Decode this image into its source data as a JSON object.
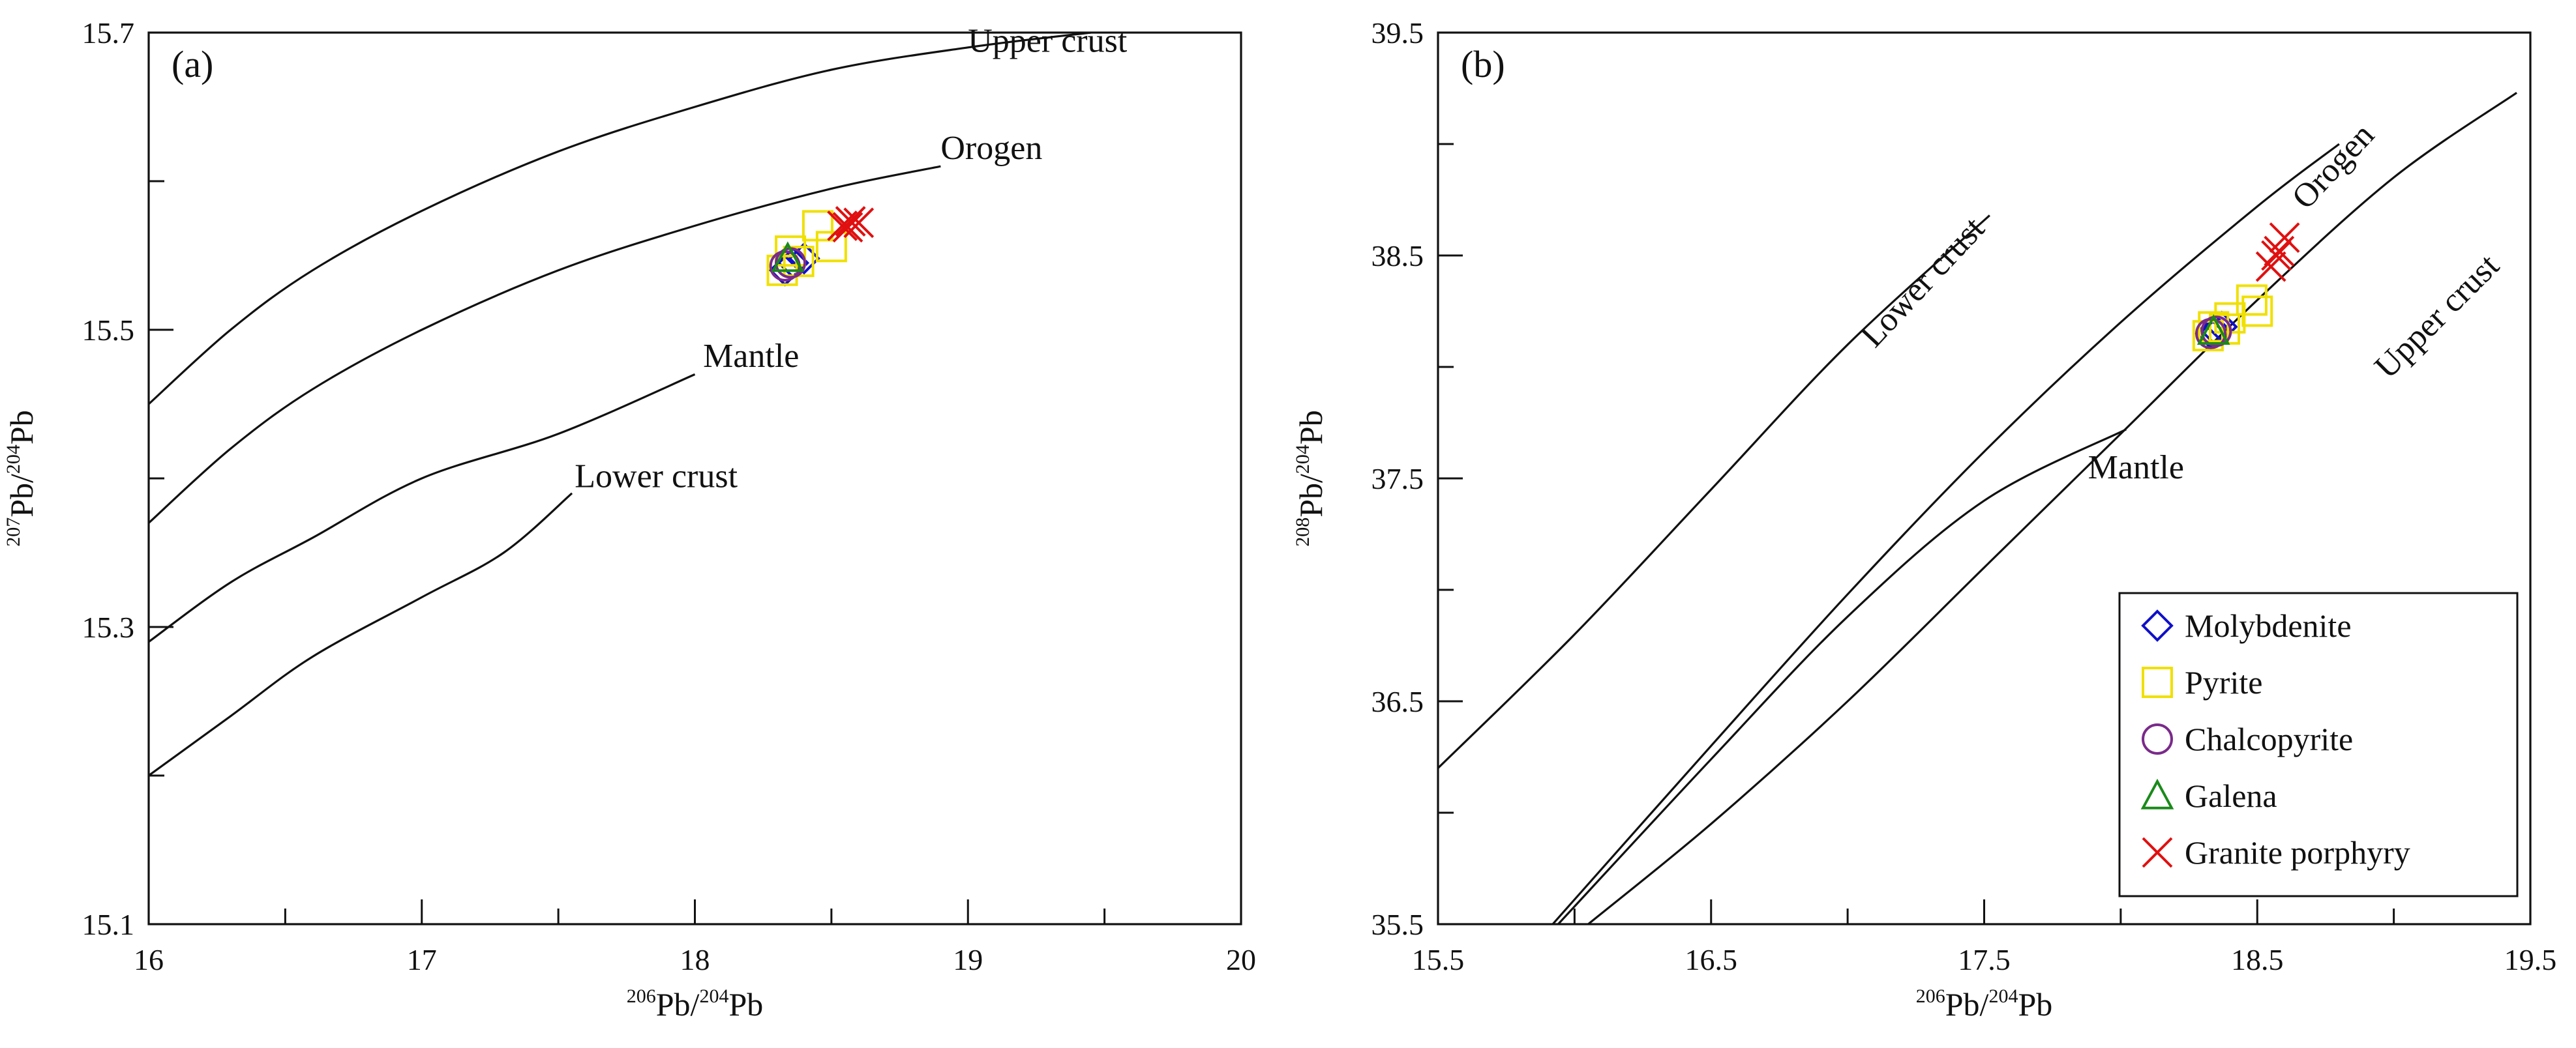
{
  "chart_data": [
    {
      "panel": "(a)",
      "type": "line",
      "xlabel": {
        "sup_a": "206",
        "base_a": "Pb/",
        "sup_b": "204",
        "base_b": "Pb"
      },
      "ylabel": {
        "sup_a": "207",
        "base_a": "Pb/",
        "sup_b": "204",
        "base_b": "Pb"
      },
      "xlim": [
        16,
        20
      ],
      "ylim": [
        15.1,
        15.7
      ],
      "x_ticks": [
        16,
        17,
        18,
        19,
        20
      ],
      "y_ticks": [
        15.1,
        15.3,
        15.5,
        15.7
      ],
      "x_minor_step": 0.5,
      "y_minor_step": 0.1,
      "curves": [
        {
          "name": "Upper crust",
          "points": [
            [
              16.0,
              15.45
            ],
            [
              16.3,
              15.5
            ],
            [
              16.6,
              15.54
            ],
            [
              17.0,
              15.58
            ],
            [
              17.5,
              15.62
            ],
            [
              18.0,
              15.65
            ],
            [
              18.5,
              15.675
            ],
            [
              19.0,
              15.69
            ],
            [
              19.45,
              15.7
            ]
          ]
        },
        {
          "name": "Orogen",
          "points": [
            [
              16.0,
              15.37
            ],
            [
              16.3,
              15.42
            ],
            [
              16.6,
              15.46
            ],
            [
              17.0,
              15.5
            ],
            [
              17.5,
              15.54
            ],
            [
              18.0,
              15.57
            ],
            [
              18.5,
              15.595
            ],
            [
              18.9,
              15.61
            ]
          ]
        },
        {
          "name": "Mantle",
          "points": [
            [
              16.0,
              15.29
            ],
            [
              16.3,
              15.33
            ],
            [
              16.6,
              15.36
            ],
            [
              17.0,
              15.4
            ],
            [
              17.5,
              15.43
            ],
            [
              18.0,
              15.47
            ]
          ]
        },
        {
          "name": "Lower crust",
          "points": [
            [
              16.0,
              15.2
            ],
            [
              16.3,
              15.24
            ],
            [
              16.6,
              15.28
            ],
            [
              17.0,
              15.32
            ],
            [
              17.3,
              15.35
            ],
            [
              17.55,
              15.39
            ]
          ]
        }
      ],
      "annotations": [
        {
          "text": "Upper crust",
          "x": 19.0,
          "y": 15.687
        },
        {
          "text": "Orogen",
          "x": 18.9,
          "y": 15.615
        },
        {
          "text": "Mantle",
          "x": 18.03,
          "y": 15.475
        },
        {
          "text": "Lower crust",
          "x": 17.56,
          "y": 15.394
        }
      ],
      "series": [
        {
          "name": "Molybdenite",
          "marker": "diamond",
          "color": "#1010c8",
          "points": [
            [
              18.33,
              15.54
            ],
            [
              18.36,
              15.545
            ],
            [
              18.4,
              15.548
            ]
          ]
        },
        {
          "name": "Pyrite",
          "marker": "square",
          "color": "#f0e000",
          "points": [
            [
              18.32,
              15.54
            ],
            [
              18.35,
              15.553
            ],
            [
              18.45,
              15.57
            ],
            [
              18.5,
              15.556
            ],
            [
              18.38,
              15.546
            ]
          ]
        },
        {
          "name": "Chalcopyrite",
          "marker": "circle",
          "color": "#7a2a8a",
          "points": [
            [
              18.33,
              15.543
            ],
            [
              18.35,
              15.545
            ]
          ]
        },
        {
          "name": "Galena",
          "marker": "triangle",
          "color": "#1a8a1a",
          "points": [
            [
              18.34,
              15.548
            ]
          ]
        },
        {
          "name": "Granite porphyry",
          "marker": "x",
          "color": "#e01010",
          "points": [
            [
              18.54,
              15.57
            ],
            [
              18.57,
              15.573
            ],
            [
              18.6,
              15.572
            ],
            [
              18.56,
              15.569
            ]
          ]
        }
      ]
    },
    {
      "panel": "(b)",
      "type": "line",
      "xlabel": {
        "sup_a": "206",
        "base_a": "Pb/",
        "sup_b": "204",
        "base_b": "Pb"
      },
      "ylabel": {
        "sup_a": "208",
        "base_a": "Pb/",
        "sup_b": "204",
        "base_b": "Pb"
      },
      "xlim": [
        15.5,
        19.5
      ],
      "ylim": [
        35.5,
        39.5
      ],
      "x_ticks": [
        15.5,
        16.5,
        17.5,
        18.5,
        19.5
      ],
      "y_ticks": [
        35.5,
        36.5,
        37.5,
        38.5,
        39.5
      ],
      "x_minor_step": 0.5,
      "y_minor_step": 0.5,
      "curves": [
        {
          "name": "Lower crust",
          "points": [
            [
              15.5,
              36.2
            ],
            [
              16.0,
              36.8
            ],
            [
              16.5,
              37.45
            ],
            [
              17.0,
              38.1
            ],
            [
              17.52,
              38.68
            ]
          ]
        },
        {
          "name": "Orogen",
          "points": [
            [
              15.92,
              35.5
            ],
            [
              16.5,
              36.3
            ],
            [
              17.0,
              36.98
            ],
            [
              17.5,
              37.62
            ],
            [
              18.0,
              38.2
            ],
            [
              18.5,
              38.72
            ],
            [
              18.8,
              39.0
            ]
          ]
        },
        {
          "name": "Mantle",
          "points": [
            [
              15.94,
              35.5
            ],
            [
              16.5,
              36.24
            ],
            [
              17.0,
              36.88
            ],
            [
              17.5,
              37.4
            ],
            [
              18.02,
              37.72
            ]
          ]
        },
        {
          "name": "Upper crust",
          "points": [
            [
              16.05,
              35.5
            ],
            [
              16.5,
              35.95
            ],
            [
              17.0,
              36.5
            ],
            [
              17.5,
              37.1
            ],
            [
              18.0,
              37.7
            ],
            [
              18.5,
              38.3
            ],
            [
              19.0,
              38.85
            ],
            [
              19.45,
              39.23
            ]
          ]
        }
      ],
      "annotations": [
        {
          "text": "Lower crust",
          "x": 17.1,
          "y": 38.08,
          "rotate": -47
        },
        {
          "text": "Orogen",
          "x": 18.68,
          "y": 38.7,
          "rotate": -47
        },
        {
          "text": "Upper crust",
          "x": 18.98,
          "y": 37.94,
          "rotate": -45
        },
        {
          "text": "Mantle",
          "x": 17.88,
          "y": 37.5,
          "rotate": 0
        }
      ],
      "series": [
        {
          "name": "Molybdenite",
          "marker": "diamond",
          "color": "#1010c8",
          "points": [
            [
              18.33,
              38.15
            ],
            [
              18.35,
              38.16
            ],
            [
              18.37,
              38.18
            ]
          ]
        },
        {
          "name": "Pyrite",
          "marker": "square",
          "color": "#f0e000",
          "points": [
            [
              18.32,
              38.14
            ],
            [
              18.34,
              38.18
            ],
            [
              18.4,
              38.22
            ],
            [
              18.48,
              38.3
            ],
            [
              18.5,
              38.25
            ],
            [
              18.38,
              38.17
            ]
          ]
        },
        {
          "name": "Chalcopyrite",
          "marker": "circle",
          "color": "#7a2a8a",
          "points": [
            [
              18.33,
              38.15
            ],
            [
              18.35,
              38.16
            ]
          ]
        },
        {
          "name": "Galena",
          "marker": "triangle",
          "color": "#1a8a1a",
          "points": [
            [
              18.34,
              38.16
            ]
          ]
        },
        {
          "name": "Granite porphyry",
          "marker": "x",
          "color": "#e01010",
          "points": [
            [
              18.55,
              38.45
            ],
            [
              18.58,
              38.52
            ],
            [
              18.6,
              38.58
            ],
            [
              18.57,
              38.5
            ]
          ]
        }
      ],
      "legend": {
        "position": "bottom-right",
        "entries": [
          "Molybdenite",
          "Pyrite",
          "Chalcopyrite",
          "Galena",
          "Granite porphyry"
        ]
      }
    }
  ]
}
